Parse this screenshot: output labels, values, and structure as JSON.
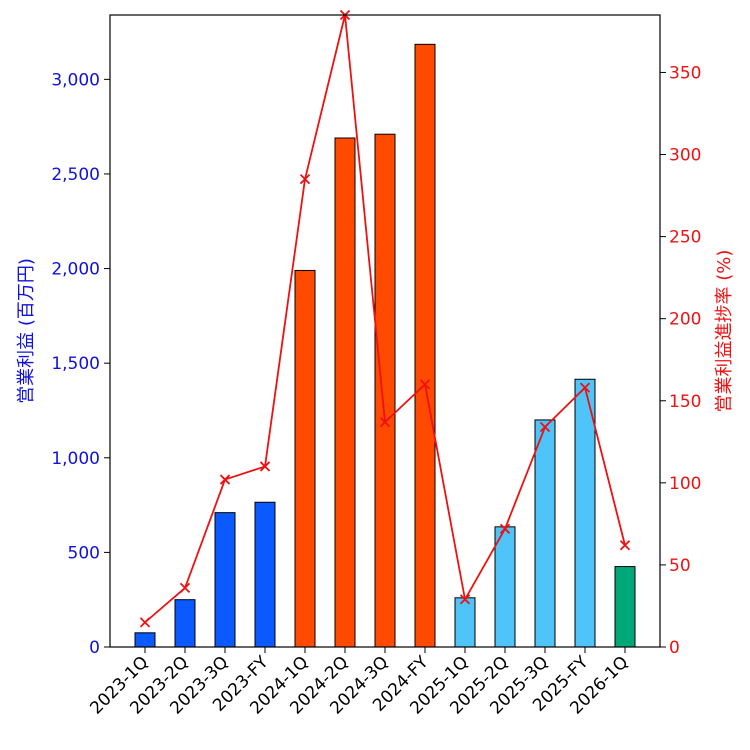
{
  "chart_data": {
    "type": "bar+line",
    "categories": [
      "2023-1Q",
      "2023-2Q",
      "2023-3Q",
      "2023-FY",
      "2024-1Q",
      "2024-2Q",
      "2024-3Q",
      "2024-FY",
      "2025-1Q",
      "2025-2Q",
      "2025-3Q",
      "2025-FY",
      "2026-1Q"
    ],
    "bar_series": {
      "name": "営業利益 (百万円)",
      "values": [
        75,
        250,
        710,
        765,
        1990,
        2690,
        2710,
        3185,
        260,
        635,
        1200,
        1415,
        425
      ],
      "colors": [
        "#0a5aff",
        "#0a5aff",
        "#0a5aff",
        "#0a5aff",
        "#ff4a00",
        "#ff4a00",
        "#ff4a00",
        "#ff4a00",
        "#4ec4f8",
        "#4ec4f8",
        "#4ec4f8",
        "#4ec4f8",
        "#00a878"
      ]
    },
    "line_series": {
      "name": "営業利益進捗率 (%)",
      "values": [
        15,
        36,
        102,
        110,
        285,
        385,
        137,
        160,
        29,
        72,
        134,
        158,
        62
      ],
      "color": "#ee1111",
      "marker": "x"
    },
    "ylabel_left": "営業利益 (百万円)",
    "ylabel_right": "営業利益進捗率 (%)",
    "ylim_left": [
      0,
      3340
    ],
    "ylim_right": [
      0,
      385
    ],
    "yticks_left": [
      0,
      500,
      1000,
      1500,
      2000,
      2500,
      3000
    ],
    "yticks_left_labels": [
      "0",
      "500",
      "1,000",
      "1,500",
      "2,000",
      "2,500",
      "3,000"
    ],
    "yticks_right": [
      0,
      50,
      100,
      150,
      200,
      250,
      300,
      350
    ],
    "yticks_right_labels": [
      "0",
      "50",
      "100",
      "150",
      "200",
      "250",
      "300",
      "350"
    ],
    "left_axis_color": "#1111dd",
    "right_axis_color": "#ee1111",
    "grid": false
  }
}
